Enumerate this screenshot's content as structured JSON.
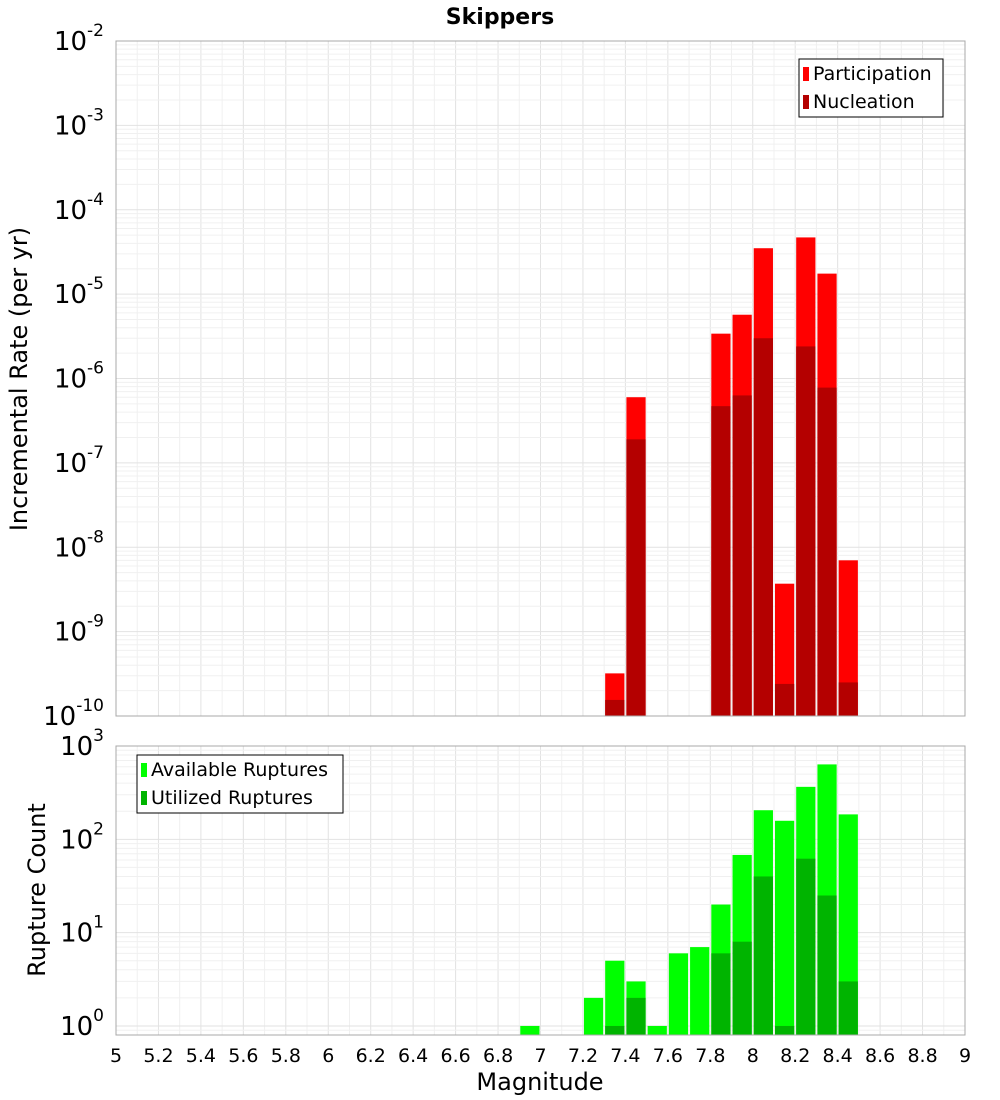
{
  "chart_data": [
    {
      "type": "bar",
      "title": "Skippers",
      "xlabel": "",
      "ylabel": "Incremental Rate (per yr)",
      "yscale": "log",
      "ylim": [
        1e-10,
        0.01
      ],
      "xlim": [
        5,
        9
      ],
      "bar_width": 0.1,
      "grid": true,
      "legend_position": "top-right",
      "ytick_labels": [
        {
          "base": "10",
          "exp": "-10",
          "value": 1e-10
        },
        {
          "base": "10",
          "exp": "-9",
          "value": 1e-09
        },
        {
          "base": "10",
          "exp": "-8",
          "value": 1e-08
        },
        {
          "base": "10",
          "exp": "-7",
          "value": 1e-07
        },
        {
          "base": "10",
          "exp": "-6",
          "value": 1e-06
        },
        {
          "base": "10",
          "exp": "-5",
          "value": 1e-05
        },
        {
          "base": "10",
          "exp": "-4",
          "value": 0.0001
        },
        {
          "base": "10",
          "exp": "-3",
          "value": 0.001
        },
        {
          "base": "10",
          "exp": "-2",
          "value": 0.01
        }
      ],
      "series": [
        {
          "name": "Participation",
          "color": "#ff0000",
          "x": [
            7.35,
            7.45,
            7.85,
            7.95,
            8.05,
            8.15,
            8.25,
            8.35,
            8.45
          ],
          "values": [
            3.2e-10,
            6e-07,
            3.4e-06,
            5.7e-06,
            3.5e-05,
            3.7e-09,
            4.7e-05,
            1.75e-05,
            7e-09
          ]
        },
        {
          "name": "Nucleation",
          "color": "#b40000",
          "x": [
            7.35,
            7.45,
            7.85,
            7.95,
            8.05,
            8.15,
            8.25,
            8.35,
            8.45
          ],
          "values": [
            1.55e-10,
            1.9e-07,
            4.7e-07,
            6.3e-07,
            3e-06,
            2.4e-10,
            2.4e-06,
            7.8e-07,
            2.5e-10
          ]
        }
      ]
    },
    {
      "type": "bar",
      "title": "",
      "xlabel": "Magnitude",
      "ylabel": "Rupture Count",
      "yscale": "log",
      "ylim": [
        0.8,
        1000
      ],
      "xlim": [
        5,
        9
      ],
      "bar_width": 0.1,
      "grid": true,
      "legend_position": "top-left",
      "xtick_labels": [
        "5",
        "5.2",
        "5.4",
        "5.6",
        "5.8",
        "6",
        "6.2",
        "6.4",
        "6.6",
        "6.8",
        "7",
        "7.2",
        "7.4",
        "7.6",
        "7.8",
        "8",
        "8.2",
        "8.4",
        "8.6",
        "8.8",
        "9"
      ],
      "ytick_labels": [
        {
          "base": "10",
          "exp": "0",
          "value": 1
        },
        {
          "base": "10",
          "exp": "1",
          "value": 10
        },
        {
          "base": "10",
          "exp": "2",
          "value": 100
        },
        {
          "base": "10",
          "exp": "3",
          "value": 1000
        }
      ],
      "series": [
        {
          "name": "Available Ruptures",
          "color": "#00ff00",
          "x": [
            6.95,
            7.25,
            7.35,
            7.45,
            7.55,
            7.65,
            7.75,
            7.85,
            7.95,
            8.05,
            8.15,
            8.25,
            8.35,
            8.45
          ],
          "values": [
            1,
            2,
            5,
            3,
            1,
            6,
            7,
            20,
            68,
            205,
            158,
            365,
            635,
            185
          ]
        },
        {
          "name": "Utilized Ruptures",
          "color": "#00b400",
          "x": [
            7.35,
            7.45,
            7.85,
            7.95,
            8.05,
            8.15,
            8.25,
            8.35,
            8.45
          ],
          "values": [
            1,
            2,
            6,
            8,
            40,
            1,
            62,
            25,
            3
          ]
        }
      ]
    }
  ]
}
